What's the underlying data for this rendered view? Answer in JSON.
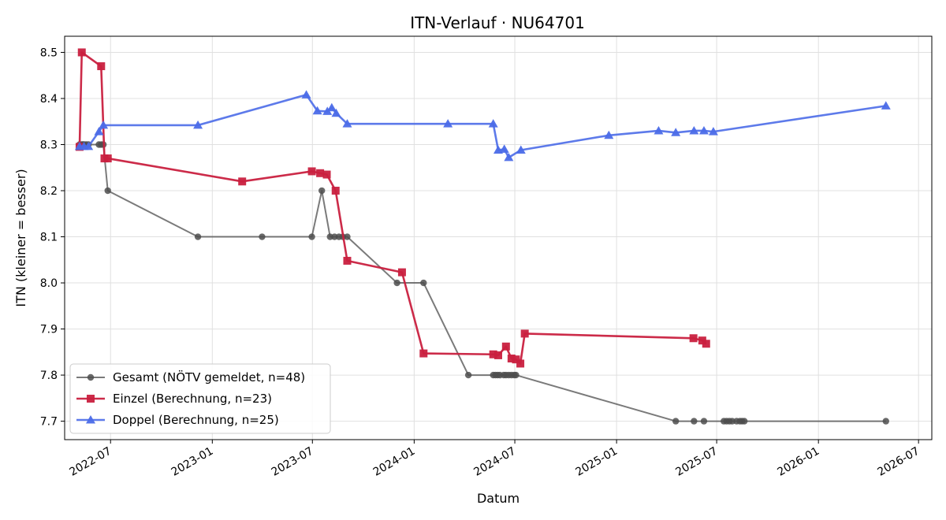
{
  "chart_data": {
    "type": "line",
    "title": "ITN-Verlauf · NU64701",
    "xlabel": "Datum",
    "ylabel": "ITN  (kleiner = besser)",
    "ylim": [
      7.66,
      8.535
    ],
    "xlim": [
      "2022-04-09",
      "2026-07-25"
    ],
    "grid": true,
    "legend_position": "lower-left",
    "y_ticks": [
      7.7,
      7.8,
      7.9,
      8.0,
      8.1,
      8.2,
      8.3,
      8.4,
      8.5
    ],
    "x_ticks": [
      "2022-07-01",
      "2023-01-01",
      "2023-07-01",
      "2024-01-01",
      "2024-07-01",
      "2025-01-01",
      "2025-07-01",
      "2026-01-01",
      "2026-07-01"
    ],
    "x_tick_labels": [
      "2022-07",
      "2023-01",
      "2023-07",
      "2024-01",
      "2024-07",
      "2025-01",
      "2025-07",
      "2026-01",
      "2026-07"
    ],
    "series": [
      {
        "name": "Gesamt (NÖTV gemeldet, n=48)",
        "color": "#4d4d4d",
        "marker": "circle",
        "points": [
          [
            "2022-05-06",
            8.3
          ],
          [
            "2022-05-10",
            8.3
          ],
          [
            "2022-05-12",
            8.3
          ],
          [
            "2022-05-14",
            8.3
          ],
          [
            "2022-05-18",
            8.3
          ],
          [
            "2022-05-22",
            8.3
          ],
          [
            "2022-06-10",
            8.3
          ],
          [
            "2022-06-14",
            8.3
          ],
          [
            "2022-06-18",
            8.3
          ],
          [
            "2022-06-26",
            8.2
          ],
          [
            "2022-12-06",
            8.1
          ],
          [
            "2023-04-01",
            8.1
          ],
          [
            "2023-06-30",
            8.1
          ],
          [
            "2023-07-18",
            8.2
          ],
          [
            "2023-08-02",
            8.1
          ],
          [
            "2023-08-10",
            8.1
          ],
          [
            "2023-08-18",
            8.1
          ],
          [
            "2023-08-25",
            8.1
          ],
          [
            "2023-09-02",
            8.1
          ],
          [
            "2023-12-01",
            8.0
          ],
          [
            "2024-01-18",
            8.0
          ],
          [
            "2024-04-08",
            7.8
          ],
          [
            "2024-05-23",
            7.8
          ],
          [
            "2024-05-27",
            7.8
          ],
          [
            "2024-05-31",
            7.8
          ],
          [
            "2024-06-04",
            7.8
          ],
          [
            "2024-06-11",
            7.8
          ],
          [
            "2024-06-15",
            7.8
          ],
          [
            "2024-06-20",
            7.8
          ],
          [
            "2024-06-25",
            7.8
          ],
          [
            "2024-06-30",
            7.8
          ],
          [
            "2024-07-03",
            7.8
          ],
          [
            "2025-04-18",
            7.7
          ],
          [
            "2025-05-21",
            7.7
          ],
          [
            "2025-06-08",
            7.7
          ],
          [
            "2025-07-14",
            7.7
          ],
          [
            "2025-07-19",
            7.7
          ],
          [
            "2025-07-24",
            7.7
          ],
          [
            "2025-07-29",
            7.7
          ],
          [
            "2025-08-06",
            7.7
          ],
          [
            "2025-08-12",
            7.7
          ],
          [
            "2025-08-16",
            7.7
          ],
          [
            "2025-08-20",
            7.7
          ],
          [
            "2026-05-03",
            7.7
          ]
        ]
      },
      {
        "name": "Einzel (Berechnung, n=23)",
        "color": "#c9203f",
        "marker": "square",
        "points": [
          [
            "2022-05-06",
            8.295
          ],
          [
            "2022-05-10",
            8.5
          ],
          [
            "2022-06-14",
            8.47
          ],
          [
            "2022-06-20",
            8.27
          ],
          [
            "2022-06-26",
            8.27
          ],
          [
            "2023-02-24",
            8.22
          ],
          [
            "2023-06-30",
            8.242
          ],
          [
            "2023-07-15",
            8.238
          ],
          [
            "2023-07-27",
            8.235
          ],
          [
            "2023-08-12",
            8.2
          ],
          [
            "2023-09-02",
            8.048
          ],
          [
            "2023-12-10",
            8.023
          ],
          [
            "2024-01-18",
            7.847
          ],
          [
            "2024-05-23",
            7.845
          ],
          [
            "2024-06-01",
            7.843
          ],
          [
            "2024-06-15",
            7.862
          ],
          [
            "2024-06-25",
            7.836
          ],
          [
            "2024-07-03",
            7.834
          ],
          [
            "2024-07-11",
            7.825
          ],
          [
            "2024-07-19",
            7.89
          ],
          [
            "2025-05-20",
            7.88
          ],
          [
            "2025-06-05",
            7.875
          ],
          [
            "2025-06-12",
            7.868
          ]
        ]
      },
      {
        "name": "Doppel (Berechnung, n=25)",
        "color": "#4b6be8",
        "marker": "triangle",
        "points": [
          [
            "2022-05-06",
            8.296
          ],
          [
            "2022-05-14",
            8.296
          ],
          [
            "2022-05-22",
            8.296
          ],
          [
            "2022-06-10",
            8.328
          ],
          [
            "2022-06-18",
            8.342
          ],
          [
            "2022-12-06",
            8.342
          ],
          [
            "2023-06-20",
            8.408
          ],
          [
            "2023-07-10",
            8.373
          ],
          [
            "2023-07-28",
            8.372
          ],
          [
            "2023-08-05",
            8.38
          ],
          [
            "2023-08-13",
            8.368
          ],
          [
            "2023-09-02",
            8.345
          ],
          [
            "2024-03-02",
            8.345
          ],
          [
            "2024-05-23",
            8.345
          ],
          [
            "2024-06-01",
            8.288
          ],
          [
            "2024-06-12",
            8.29
          ],
          [
            "2024-06-20",
            8.272
          ],
          [
            "2024-07-12",
            8.288
          ],
          [
            "2024-12-18",
            8.32
          ],
          [
            "2025-03-18",
            8.33
          ],
          [
            "2025-04-18",
            8.326
          ],
          [
            "2025-05-21",
            8.33
          ],
          [
            "2025-06-08",
            8.33
          ],
          [
            "2025-06-25",
            8.328
          ],
          [
            "2026-05-03",
            8.384
          ]
        ]
      }
    ]
  }
}
